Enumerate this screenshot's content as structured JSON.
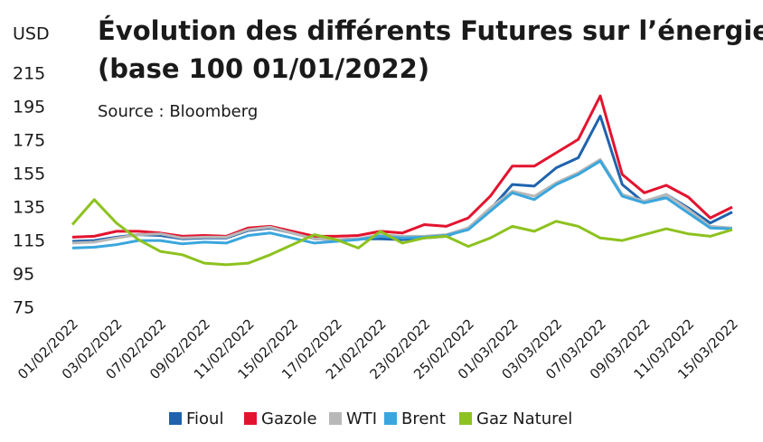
{
  "chart_data": {
    "type": "line",
    "y_unit": "USD",
    "title": "Évolution des différents Futures sur l’énergie",
    "subtitle": "(base 100 01/01/2022)",
    "source": "Source : Bloomberg",
    "categories": [
      "01/02/2022",
      null,
      "03/02/2022",
      null,
      "07/02/2022",
      null,
      "09/02/2022",
      null,
      "11/02/2022",
      null,
      "15/02/2022",
      null,
      "17/02/2022",
      null,
      "21/02/2022",
      null,
      "23/02/2022",
      null,
      "25/02/2022",
      null,
      "01/03/2022",
      null,
      "03/03/2022",
      null,
      "07/03/2022",
      null,
      "09/03/2022",
      null,
      "11/03/2022",
      null,
      "15/03/2022"
    ],
    "ylim": [
      75,
      215
    ],
    "yticks": [
      75,
      95,
      115,
      135,
      155,
      175,
      195,
      215
    ],
    "grid": false,
    "legend": "bottom",
    "series": [
      {
        "name": "Fioul",
        "color": "#1f63ad",
        "values": [
          115,
          115.5,
          117.5,
          119,
          118.5,
          116.5,
          117,
          117,
          121.5,
          123,
          120,
          116.5,
          116,
          116.5,
          116.5,
          116,
          117,
          118,
          123,
          134,
          149,
          148,
          159,
          165,
          190,
          149,
          138,
          143,
          135,
          126,
          132.5
        ]
      },
      {
        "name": "Gazole",
        "color": "#e3132f",
        "values": [
          117.5,
          118,
          121,
          121,
          120,
          118,
          118.5,
          118,
          123,
          124,
          121,
          118,
          118,
          118.5,
          121,
          120,
          125,
          124,
          129,
          142,
          160,
          160,
          168,
          176,
          202,
          155,
          144,
          148.5,
          141.5,
          129,
          135.5
        ]
      },
      {
        "name": "WTI",
        "color": "#b8b8b8",
        "values": [
          114,
          114.5,
          117,
          119,
          119.5,
          117,
          117.5,
          117.5,
          122,
          123.5,
          120,
          116.5,
          116,
          116.5,
          119,
          118,
          118,
          119,
          123,
          135,
          145,
          142,
          150,
          156,
          164,
          143,
          139,
          143,
          134,
          124,
          123
        ]
      },
      {
        "name": "Brent",
        "color": "#3aa6dd",
        "values": [
          111,
          111.5,
          113,
          115.5,
          115.5,
          113.5,
          114.5,
          114,
          118.5,
          120,
          117,
          114,
          115,
          116,
          118,
          117,
          117.5,
          118.5,
          122,
          133,
          144,
          140,
          149,
          155,
          163,
          142,
          138,
          141,
          132,
          123,
          122.5
        ]
      },
      {
        "name": "Gaz Naturel",
        "color": "#8dc21f",
        "values": [
          125,
          140,
          126,
          116,
          109,
          107,
          102,
          101,
          102,
          107,
          113,
          119,
          116,
          111,
          121,
          114,
          117,
          118,
          112,
          117,
          124,
          121,
          127,
          124,
          117,
          115.5,
          119,
          122.5,
          119.5,
          118,
          122
        ]
      }
    ]
  }
}
